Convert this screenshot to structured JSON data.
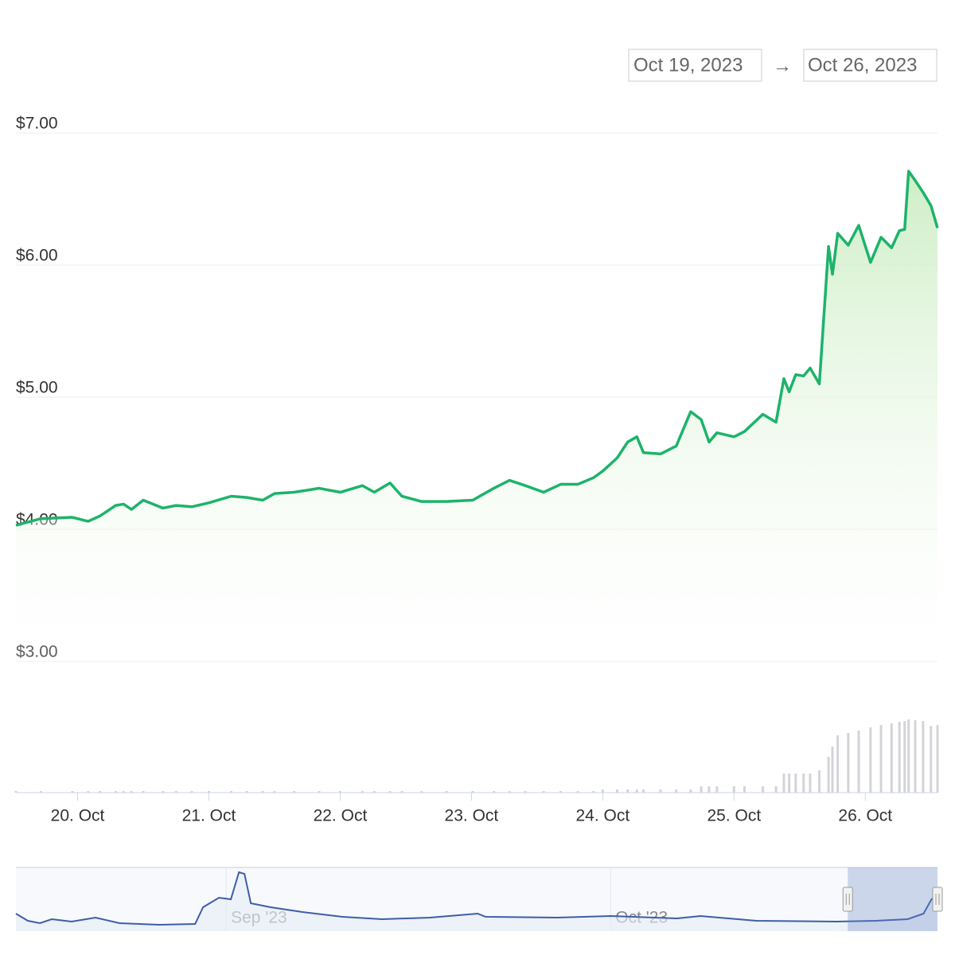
{
  "range_inputs": {
    "from": "Oct 19, 2023",
    "separator": "→",
    "to": "Oct 26, 2023"
  },
  "chart_data": {
    "type": "line",
    "x": [
      19.53,
      19.72,
      19.96,
      20.08,
      20.17,
      20.29,
      20.35,
      20.41,
      20.5,
      20.65,
      20.75,
      20.87,
      21.0,
      21.17,
      21.29,
      21.41,
      21.5,
      21.65,
      21.84,
      22.0,
      22.17,
      22.26,
      22.38,
      22.47,
      22.62,
      22.81,
      23.01,
      23.17,
      23.29,
      23.41,
      23.55,
      23.68,
      23.81,
      23.93,
      24.0,
      24.11,
      24.19,
      24.26,
      24.31,
      24.44,
      24.56,
      24.67,
      24.75,
      24.81,
      24.87,
      25.0,
      25.08,
      25.22,
      25.32,
      25.38,
      25.42,
      25.47,
      25.53,
      25.58,
      25.65,
      25.72,
      25.75,
      25.79,
      25.87,
      25.95,
      26.04,
      26.12,
      26.2,
      26.26,
      26.3,
      26.33,
      26.38,
      26.44,
      26.5,
      26.55
    ],
    "series": [
      {
        "color": "#1db36b",
        "values": [
          4.03,
          4.08,
          4.09,
          4.06,
          4.1,
          4.18,
          4.19,
          4.15,
          4.22,
          4.16,
          4.18,
          4.17,
          4.2,
          4.25,
          4.24,
          4.22,
          4.27,
          4.28,
          4.31,
          4.28,
          4.33,
          4.28,
          4.35,
          4.25,
          4.21,
          4.21,
          4.22,
          4.31,
          4.37,
          4.33,
          4.28,
          4.34,
          4.34,
          4.39,
          4.44,
          4.54,
          4.66,
          4.7,
          4.58,
          4.57,
          4.63,
          4.89,
          4.83,
          4.66,
          4.73,
          4.7,
          4.74,
          4.87,
          4.81,
          5.14,
          5.04,
          5.17,
          5.16,
          5.22,
          5.1,
          6.14,
          5.93,
          6.24,
          6.15,
          6.3,
          6.02,
          6.21,
          6.13,
          6.26,
          6.27,
          6.71,
          6.64,
          6.55,
          6.45,
          6.28
        ]
      }
    ],
    "volume": {
      "color": "#d4d4d8",
      "ylim": [
        0,
        100
      ],
      "values": [
        2,
        2,
        2,
        2,
        2,
        2,
        2,
        2,
        2,
        2,
        2,
        2,
        2,
        2,
        2,
        2,
        2,
        2,
        2,
        2,
        2,
        2,
        2,
        2,
        2,
        2,
        2,
        2,
        2,
        2,
        2,
        2,
        2,
        2,
        4,
        4,
        4,
        4,
        4,
        4,
        4,
        4,
        8,
        8,
        8,
        8,
        8,
        8,
        8,
        24,
        24,
        24,
        24,
        24,
        28,
        45,
        58,
        72,
        75,
        78,
        82,
        85,
        87,
        89,
        90,
        92,
        91,
        90,
        84,
        85
      ]
    },
    "xlim": [
      19.53,
      26.55
    ],
    "xticks": [
      {
        "value": 20,
        "label": "20. Oct"
      },
      {
        "value": 21,
        "label": "21. Oct"
      },
      {
        "value": 22,
        "label": "22. Oct"
      },
      {
        "value": 23,
        "label": "23. Oct"
      },
      {
        "value": 24,
        "label": "24. Oct"
      },
      {
        "value": 25,
        "label": "25. Oct"
      },
      {
        "value": 26,
        "label": "26. Oct"
      }
    ],
    "ylim": [
      3,
      7
    ],
    "yticks": [
      {
        "value": 3,
        "label": "$3.00"
      },
      {
        "value": 4,
        "label": "$4.00"
      },
      {
        "value": 5,
        "label": "$5.00"
      },
      {
        "value": 6,
        "label": "$6.00"
      },
      {
        "value": 7,
        "label": "$7.00"
      }
    ],
    "grid": true
  },
  "navigator": {
    "type": "line",
    "color": "#3d5ea8",
    "x": [
      -16.4,
      -15.47,
      -14.53,
      -13.6,
      -12.05,
      -10.19,
      -8.32,
      -5.22,
      -2.42,
      -1.8,
      -0.56,
      0.37,
      1.0,
      1.43,
      1.93,
      3.48,
      5.96,
      9.07,
      12.17,
      15.9,
      19.63,
      20.25,
      25.84,
      30,
      35.16,
      37.02,
      41.37,
      47.58,
      50.68,
      53.17,
      54.41,
      55.03,
      55.47
    ],
    "values": [
      22,
      13,
      10,
      15,
      12,
      17,
      10,
      8,
      9,
      30,
      42,
      40,
      74,
      72,
      35,
      30,
      24,
      18,
      15,
      17,
      22,
      18,
      17,
      19,
      16,
      19,
      13,
      12,
      13,
      15,
      22,
      40,
      45
    ],
    "xlim": [
      -16.4,
      55.5
    ],
    "ylim": [
      0,
      80
    ],
    "xticks": [
      {
        "value": 0,
        "label": "Sep '23"
      },
      {
        "value": 30,
        "label": "Oct '23"
      }
    ],
    "selection": [
      48.5,
      55.5
    ]
  }
}
